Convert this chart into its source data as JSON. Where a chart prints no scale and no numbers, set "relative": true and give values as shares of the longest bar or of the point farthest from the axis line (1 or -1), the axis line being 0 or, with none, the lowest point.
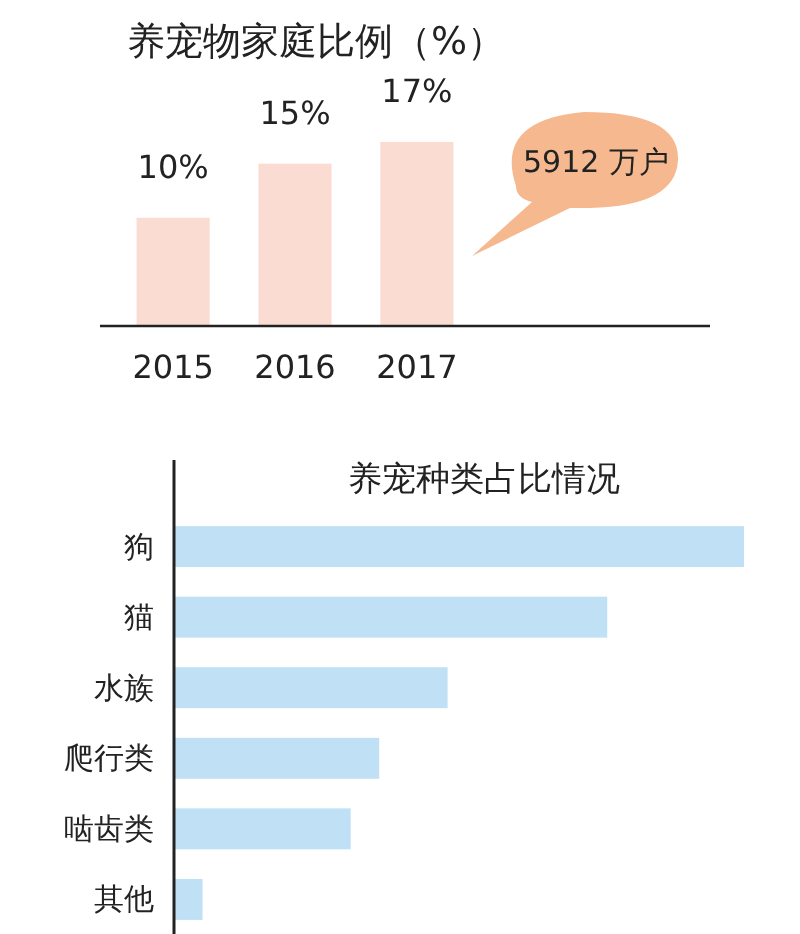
{
  "chart_data": [
    {
      "type": "bar",
      "title": "养宠物家庭比例（%）",
      "categories": [
        "2015",
        "2016",
        "2017"
      ],
      "values": [
        10,
        15,
        17
      ],
      "value_labels": [
        "10%",
        "15%",
        "17%"
      ],
      "color": "#fbdcd3",
      "annotations": [
        "5912 万户"
      ]
    },
    {
      "type": "bar",
      "orientation": "horizontal",
      "relative": true,
      "title": "养宠种类占比情况",
      "categories": [
        "狗",
        "猫",
        "水族",
        "爬行类",
        "啮齿类",
        "其他"
      ],
      "values": [
        1,
        0.76,
        0.48,
        0.36,
        0.31,
        0.05
      ],
      "color": "#bfe0f5"
    }
  ]
}
